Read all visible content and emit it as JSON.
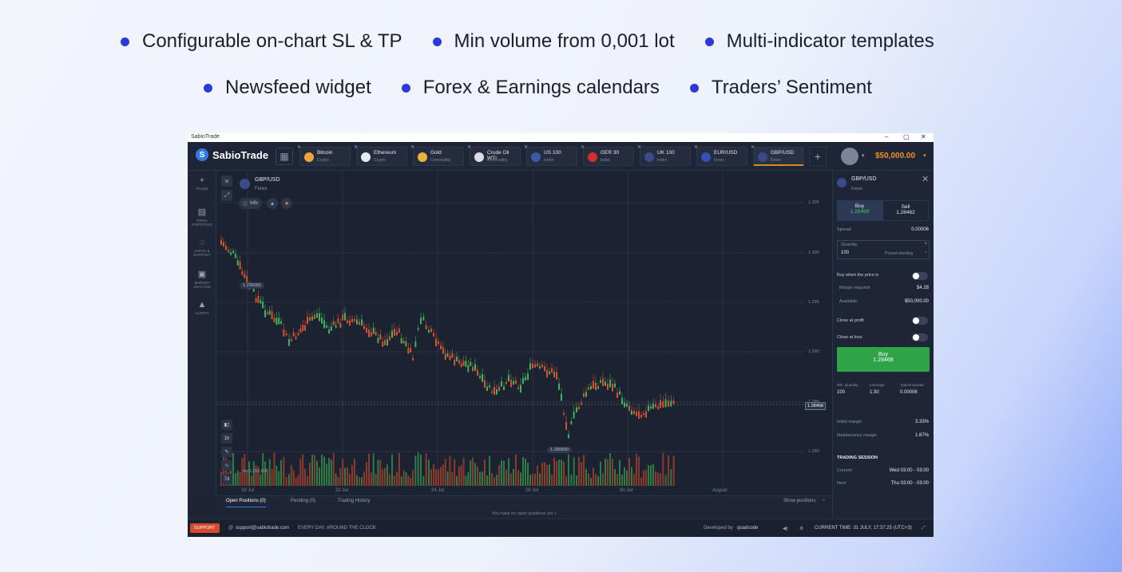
{
  "features": {
    "row1": [
      "Configurable on-chart SL & TP",
      "Min volume from 0,001 lot",
      "Multi-indicator templates"
    ],
    "row2": [
      "Newsfeed widget",
      "Forex & Earnings calendars",
      "Traders’ Sentiment"
    ]
  },
  "window": {
    "title": "SabioTrade",
    "minimize": "–",
    "restore": "▢",
    "close": "✕"
  },
  "app": {
    "brand": "SabioTrade",
    "balance": "$50,000.00",
    "tabs": [
      {
        "name": "Bitcoin",
        "type": "Crypto",
        "color": "#f3a33b"
      },
      {
        "name": "Ethereum",
        "type": "Crypto",
        "color": "#e8ebf2"
      },
      {
        "name": "Gold",
        "type": "Commodity",
        "color": "#e8b33a"
      },
      {
        "name": "Crude Oil WTI",
        "type": "Commodity",
        "color": "#d9dde6"
      },
      {
        "name": "US 100",
        "type": "Index",
        "color": "#3c5aa8"
      },
      {
        "name": "GER 30",
        "type": "Index",
        "color": "#d62d2d"
      },
      {
        "name": "UK 100",
        "type": "Index",
        "color": "#3c4a8a"
      },
      {
        "name": "EUR/USD",
        "type": "Forex",
        "color": "#3350b8"
      },
      {
        "name": "GBP/USD",
        "type": "Forex",
        "color": "#3c4a8a"
      }
    ],
    "sidebar": [
      {
        "icon": "+",
        "label": "TRADE"
      },
      {
        "icon": "▤",
        "label": "TOTAL PORTFOLIO"
      },
      {
        "icon": "◌",
        "label": "CHATS & SUPPORT"
      },
      {
        "icon": "▣",
        "label": "MARKET ANALYSIS"
      },
      {
        "icon": "▲",
        "label": "ALERTS"
      }
    ],
    "chart": {
      "symbol": "GBP/USD",
      "type": "Forex",
      "info_label": "Info",
      "timeframe": "1h",
      "period": "7d",
      "y_ticks": [
        "1.305",
        "1.300",
        "1.295",
        "1.290",
        "1.285",
        "1.280"
      ],
      "x_ticks": [
        "18 Jul",
        "22 Jul",
        "24 Jul",
        "26 Jul",
        "30 Jul",
        "August"
      ],
      "current_price": "1.28468",
      "high_marker": "1.296092",
      "low_marker": "1.280650",
      "vol_labels": [
        "Vol 1,256,162"
      ]
    },
    "bottom_tabs": [
      "Open Positions (0)",
      "Pending (0)",
      "Trading History"
    ],
    "show_positions": "Show positions",
    "no_positions": "You have no open positions yet",
    "panel": {
      "symbol": "GBP/USD",
      "type": "Forex",
      "buy_label": "Buy",
      "buy_price": "1.28468",
      "sell_label": "Sell",
      "sell_price": "1.28462",
      "spread_label": "Spread",
      "spread_value": "0.00006",
      "quantity_label": "Quantity",
      "quantity_value": "100",
      "quantity_unit": "Pound sterling",
      "buy_when_label": "Buy when the price is",
      "margin_required_label": "Margin required",
      "margin_required_value": "$4.28",
      "available_label": "Available",
      "available_value": "$50,000.00",
      "close_profit_label": "Close at profit",
      "close_loss_label": "Close at loss",
      "buy_button_label": "Buy",
      "buy_button_price": "1.28468",
      "min_qty_label": "Min. Quantity",
      "min_qty_value": "100",
      "leverage_label": "Leverage",
      "leverage_value": "1:30",
      "typical_spread_label": "Typical Spread",
      "typical_spread_value": "0.00006",
      "initial_margin_label": "Initial margin",
      "initial_margin_value": "3.33%",
      "maintenance_margin_label": "Maintenance margin",
      "maintenance_margin_value": "1.67%",
      "session_title": "TRADING SESSION",
      "current_label": "Current",
      "current_value": "Wed 03:00 - 03:00",
      "next_label": "Next",
      "next_value": "Thu 03:00 - 03:00"
    },
    "status": {
      "support": "SUPPORT",
      "email": "support@sabiotrade.com",
      "hours": "EVERY DAY, AROUND THE CLOCK",
      "developed": "Developed by",
      "developer": "quadcode",
      "current_time": "CURRENT TIME: 31 JULY, 17:37:25 (UTC+3)"
    }
  }
}
